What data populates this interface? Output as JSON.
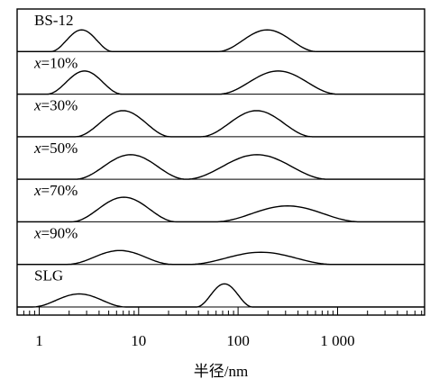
{
  "chart_data": {
    "type": "line",
    "xlabel": "半径/nm",
    "x_scale": "log",
    "xlim": [
      0.6,
      7500
    ],
    "x_ticks": [
      {
        "value": 1,
        "label": "1"
      },
      {
        "value": 10,
        "label": "10"
      },
      {
        "value": 100,
        "label": "100"
      },
      {
        "value": 1000,
        "label": "1 000"
      }
    ],
    "series": [
      {
        "name": "BS-12",
        "name_prefix": "",
        "name_main": "BS-12",
        "peaks": [
          [
            1.3,
            5.5,
            0.75
          ],
          [
            62,
            620,
            0.75
          ]
        ]
      },
      {
        "name": "x=10%",
        "name_prefix": "x",
        "name_main": "=10%",
        "peaks": [
          [
            1.2,
            6.8,
            0.8
          ],
          [
            64,
            1000,
            0.8
          ]
        ]
      },
      {
        "name": "x=30%",
        "name_prefix": "x",
        "name_main": "=30%",
        "peaks": [
          [
            2.3,
            21,
            0.9
          ],
          [
            42,
            560,
            0.9
          ]
        ]
      },
      {
        "name": "x=50%",
        "name_prefix": "x",
        "name_main": "=50%",
        "peaks": [
          [
            2.3,
            30,
            0.85
          ],
          [
            30,
            800,
            0.85
          ]
        ]
      },
      {
        "name": "x=70%",
        "name_prefix": "x",
        "name_main": "=70%",
        "peaks": [
          [
            2.1,
            24,
            0.85
          ],
          [
            58,
            1700,
            0.55
          ]
        ]
      },
      {
        "name": "x=90%",
        "name_prefix": "x",
        "name_main": "=90%",
        "peaks": [
          [
            1.9,
            22,
            0.48
          ],
          [
            32,
            900,
            0.42
          ]
        ]
      },
      {
        "name": "SLG",
        "name_prefix": "",
        "name_main": "SLG",
        "peaks": [
          [
            0.85,
            7.5,
            0.45
          ],
          [
            38,
            140,
            0.8
          ]
        ]
      }
    ]
  }
}
